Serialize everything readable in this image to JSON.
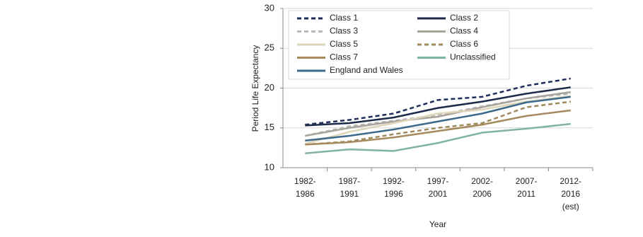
{
  "chart_data": {
    "type": "line",
    "categories": [
      "1982-\n1986",
      "1987-\n1991",
      "1992-\n1996",
      "1997-\n2001",
      "2002-\n2006",
      "2007-\n2011",
      "2012-\n2016\n(est)"
    ],
    "x_label": "Year",
    "y_label": "Period Life Expectancy",
    "ylim": [
      10,
      30
    ],
    "yticks": [
      10,
      15,
      20,
      25,
      30
    ],
    "grid": true,
    "series": [
      {
        "name": "Class 1",
        "color": "#1f2d5a",
        "dashed": true,
        "values": [
          15.4,
          16.0,
          16.8,
          18.5,
          18.9,
          20.3,
          21.2
        ]
      },
      {
        "name": "Class 2",
        "color": "#1c2b4a",
        "dashed": false,
        "values": [
          15.3,
          15.6,
          16.3,
          17.5,
          18.3,
          19.3,
          20.1
        ]
      },
      {
        "name": "Class 3",
        "color": "#b8b8b8",
        "dashed": true,
        "values": [
          14.0,
          15.2,
          15.9,
          16.6,
          17.7,
          18.7,
          19.3
        ]
      },
      {
        "name": "Class 4",
        "color": "#a8a49c",
        "dashed": false,
        "values": [
          14.0,
          15.0,
          15.8,
          16.4,
          17.6,
          18.7,
          19.5
        ]
      },
      {
        "name": "Class 5",
        "color": "#ddd5b8",
        "dashed": false,
        "values": [
          13.0,
          14.5,
          15.6,
          16.8,
          17.3,
          18.3,
          19.0
        ]
      },
      {
        "name": "Class 6",
        "color": "#a08a5c",
        "dashed": true,
        "values": [
          12.9,
          13.3,
          14.2,
          15.0,
          15.6,
          17.6,
          18.3
        ]
      },
      {
        "name": "Class 7",
        "color": "#a68a5e",
        "dashed": false,
        "values": [
          12.9,
          13.2,
          13.8,
          14.6,
          15.4,
          16.5,
          17.2
        ]
      },
      {
        "name": "Unclassified",
        "color": "#7fb3a4",
        "dashed": false,
        "values": [
          11.8,
          12.3,
          12.1,
          13.1,
          14.4,
          14.9,
          15.5
        ]
      },
      {
        "name": "England and Wales",
        "color": "#3d6a8a",
        "dashed": false,
        "values": [
          13.4,
          14.0,
          14.8,
          15.8,
          16.8,
          18.2,
          18.9
        ]
      }
    ]
  }
}
